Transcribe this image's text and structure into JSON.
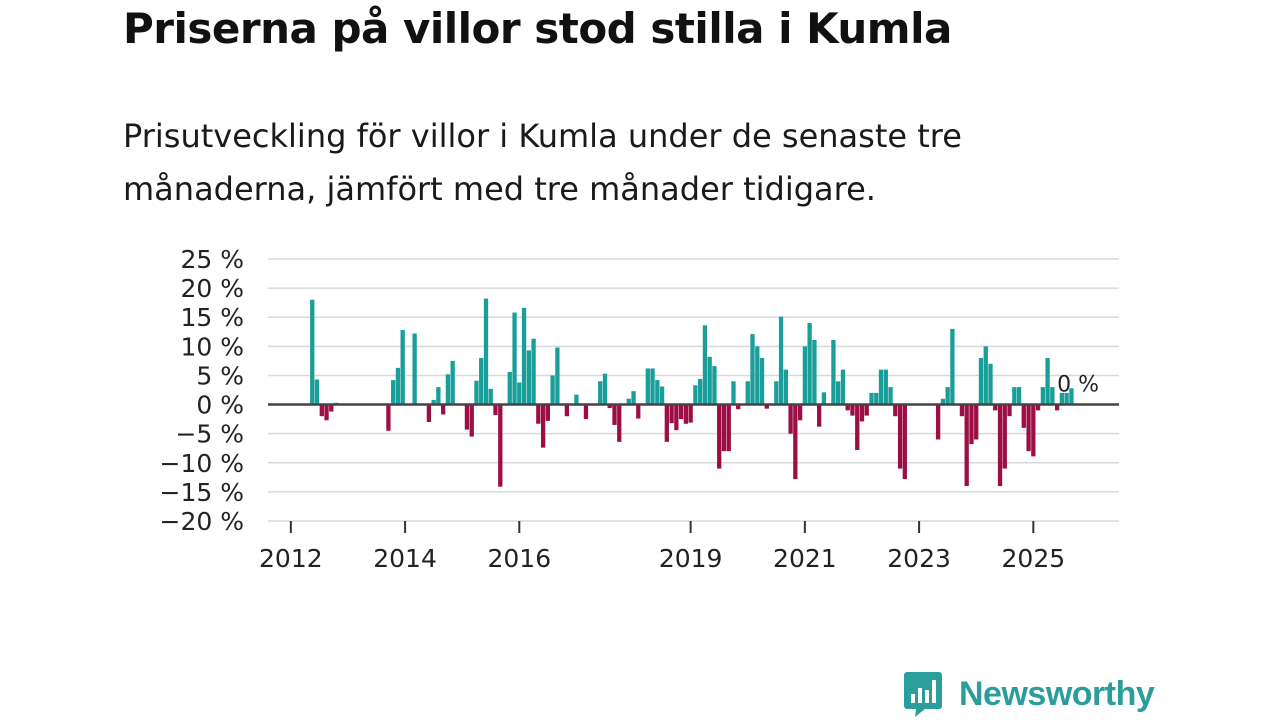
{
  "header": {
    "title": "Priserna på villor stod stilla i Kumla",
    "subtitle": "Prisutveckling för villor i Kumla under de senaste tre månaderna, jämfört med tre månader tidigare."
  },
  "brand": {
    "name": "Newsworthy",
    "color": "#2b9d9a"
  },
  "colors": {
    "positive": "#1a9e9a",
    "negative": "#9c0f45",
    "grid": "#d9d9d9",
    "zero_line": "#444444"
  },
  "chart_data": {
    "type": "bar",
    "title": "Priserna på villor stod stilla i Kumla",
    "xlabel": "",
    "ylabel": "",
    "ylim": [
      -20,
      25
    ],
    "y_ticks": [
      25,
      20,
      15,
      10,
      5,
      0,
      -5,
      -10,
      -15,
      -20
    ],
    "y_tick_labels": [
      "25 %",
      "20 %",
      "15 %",
      "10 %",
      "5 %",
      "0 %",
      "−5 %",
      "−10 %",
      "−15 %",
      "−20 %"
    ],
    "x_ticks": [
      {
        "label": "2012",
        "x": 2012.0
      },
      {
        "label": "2014",
        "x": 2014.0
      },
      {
        "label": "2016",
        "x": 2016.0
      },
      {
        "label": "2019",
        "x": 2019.0
      },
      {
        "label": "2021",
        "x": 2021.0
      },
      {
        "label": "2023",
        "x": 2023.0
      },
      {
        "label": "2025",
        "x": 2025.0
      }
    ],
    "xlim": [
      2011.6,
      2026.5
    ],
    "annotation": "0 %",
    "series": [
      {
        "name": "Prisutveckling",
        "points": [
          {
            "x": 2012.375,
            "y": 18
          },
          {
            "x": 2012.458,
            "y": 4.3
          },
          {
            "x": 2012.542,
            "y": -2
          },
          {
            "x": 2012.625,
            "y": -2.7
          },
          {
            "x": 2012.708,
            "y": -1.2
          },
          {
            "x": 2012.792,
            "y": 0.3
          },
          {
            "x": 2013.708,
            "y": -4.5
          },
          {
            "x": 2013.792,
            "y": 4.2
          },
          {
            "x": 2013.875,
            "y": 6.3
          },
          {
            "x": 2013.958,
            "y": 12.8
          },
          {
            "x": 2014.167,
            "y": 12.2
          },
          {
            "x": 2014.417,
            "y": -3
          },
          {
            "x": 2014.5,
            "y": 0.8
          },
          {
            "x": 2014.583,
            "y": 3
          },
          {
            "x": 2014.667,
            "y": -1.7
          },
          {
            "x": 2014.75,
            "y": 5.2
          },
          {
            "x": 2014.833,
            "y": 7.5
          },
          {
            "x": 2015.083,
            "y": -4.3
          },
          {
            "x": 2015.167,
            "y": -5.5
          },
          {
            "x": 2015.25,
            "y": 4.1
          },
          {
            "x": 2015.333,
            "y": 8
          },
          {
            "x": 2015.417,
            "y": 18.2
          },
          {
            "x": 2015.5,
            "y": 2.7
          },
          {
            "x": 2015.583,
            "y": -1.8
          },
          {
            "x": 2015.667,
            "y": -14.1
          },
          {
            "x": 2015.833,
            "y": 5.6
          },
          {
            "x": 2015.917,
            "y": 15.8
          },
          {
            "x": 2016.0,
            "y": 3.8
          },
          {
            "x": 2016.083,
            "y": 16.6
          },
          {
            "x": 2016.167,
            "y": 9.3
          },
          {
            "x": 2016.25,
            "y": 11.3
          },
          {
            "x": 2016.333,
            "y": -3.3
          },
          {
            "x": 2016.417,
            "y": -7.4
          },
          {
            "x": 2016.5,
            "y": -2.8
          },
          {
            "x": 2016.583,
            "y": 5
          },
          {
            "x": 2016.667,
            "y": 9.8
          },
          {
            "x": 2016.833,
            "y": -2
          },
          {
            "x": 2017.0,
            "y": 1.7
          },
          {
            "x": 2017.167,
            "y": -2.5
          },
          {
            "x": 2017.417,
            "y": 4
          },
          {
            "x": 2017.5,
            "y": 5.3
          },
          {
            "x": 2017.583,
            "y": -0.6
          },
          {
            "x": 2017.667,
            "y": -3.5
          },
          {
            "x": 2017.75,
            "y": -6.4
          },
          {
            "x": 2017.917,
            "y": 1
          },
          {
            "x": 2018.0,
            "y": 2.3
          },
          {
            "x": 2018.083,
            "y": -2.4
          },
          {
            "x": 2018.25,
            "y": 6.2
          },
          {
            "x": 2018.333,
            "y": 6.2
          },
          {
            "x": 2018.417,
            "y": 4.2
          },
          {
            "x": 2018.5,
            "y": 3.1
          },
          {
            "x": 2018.583,
            "y": -6.4
          },
          {
            "x": 2018.667,
            "y": -3.2
          },
          {
            "x": 2018.75,
            "y": -4.4
          },
          {
            "x": 2018.833,
            "y": -2.5
          },
          {
            "x": 2018.917,
            "y": -3.3
          },
          {
            "x": 2019.0,
            "y": -3.1
          },
          {
            "x": 2019.083,
            "y": 3.3
          },
          {
            "x": 2019.167,
            "y": 4.4
          },
          {
            "x": 2019.25,
            "y": 13.6
          },
          {
            "x": 2019.333,
            "y": 8.2
          },
          {
            "x": 2019.417,
            "y": 6.6
          },
          {
            "x": 2019.5,
            "y": -11
          },
          {
            "x": 2019.583,
            "y": -8
          },
          {
            "x": 2019.667,
            "y": -8
          },
          {
            "x": 2019.75,
            "y": 4
          },
          {
            "x": 2019.833,
            "y": -0.8
          },
          {
            "x": 2020.0,
            "y": 4
          },
          {
            "x": 2020.083,
            "y": 12.1
          },
          {
            "x": 2020.167,
            "y": 10
          },
          {
            "x": 2020.25,
            "y": 8
          },
          {
            "x": 2020.333,
            "y": -0.7
          },
          {
            "x": 2020.5,
            "y": 4
          },
          {
            "x": 2020.583,
            "y": 15.1
          },
          {
            "x": 2020.667,
            "y": 6
          },
          {
            "x": 2020.75,
            "y": -5
          },
          {
            "x": 2020.833,
            "y": -12.8
          },
          {
            "x": 2020.917,
            "y": -2.7
          },
          {
            "x": 2021.0,
            "y": 10
          },
          {
            "x": 2021.083,
            "y": 14
          },
          {
            "x": 2021.167,
            "y": 11.1
          },
          {
            "x": 2021.25,
            "y": -3.8
          },
          {
            "x": 2021.333,
            "y": 2.1
          },
          {
            "x": 2021.5,
            "y": 11.1
          },
          {
            "x": 2021.583,
            "y": 4
          },
          {
            "x": 2021.667,
            "y": 6
          },
          {
            "x": 2021.75,
            "y": -1
          },
          {
            "x": 2021.833,
            "y": -1.9
          },
          {
            "x": 2021.917,
            "y": -7.8
          },
          {
            "x": 2022.0,
            "y": -2.9
          },
          {
            "x": 2022.083,
            "y": -1.9
          },
          {
            "x": 2022.167,
            "y": 2
          },
          {
            "x": 2022.25,
            "y": 2
          },
          {
            "x": 2022.333,
            "y": 6
          },
          {
            "x": 2022.417,
            "y": 6
          },
          {
            "x": 2022.5,
            "y": 3
          },
          {
            "x": 2022.583,
            "y": -2
          },
          {
            "x": 2022.667,
            "y": -11
          },
          {
            "x": 2022.75,
            "y": -12.8
          },
          {
            "x": 2023.333,
            "y": -6
          },
          {
            "x": 2023.417,
            "y": 1
          },
          {
            "x": 2023.5,
            "y": 3
          },
          {
            "x": 2023.583,
            "y": 13
          },
          {
            "x": 2023.75,
            "y": -2
          },
          {
            "x": 2023.833,
            "y": -14
          },
          {
            "x": 2023.917,
            "y": -6.8
          },
          {
            "x": 2024.0,
            "y": -6
          },
          {
            "x": 2024.083,
            "y": 8
          },
          {
            "x": 2024.167,
            "y": 10
          },
          {
            "x": 2024.25,
            "y": 7
          },
          {
            "x": 2024.333,
            "y": -1
          },
          {
            "x": 2024.417,
            "y": -14
          },
          {
            "x": 2024.5,
            "y": -11
          },
          {
            "x": 2024.583,
            "y": -2
          },
          {
            "x": 2024.667,
            "y": 3
          },
          {
            "x": 2024.75,
            "y": 3
          },
          {
            "x": 2024.833,
            "y": -4
          },
          {
            "x": 2024.917,
            "y": -8
          },
          {
            "x": 2025.0,
            "y": -8.9
          },
          {
            "x": 2025.083,
            "y": -1
          },
          {
            "x": 2025.167,
            "y": 3
          },
          {
            "x": 2025.25,
            "y": 8
          },
          {
            "x": 2025.333,
            "y": 3
          },
          {
            "x": 2025.417,
            "y": -1
          },
          {
            "x": 2025.5,
            "y": 2
          },
          {
            "x": 2025.583,
            "y": 2
          },
          {
            "x": 2025.667,
            "y": 2.8
          },
          {
            "x": 2025.75,
            "y": 0
          }
        ]
      }
    ]
  }
}
